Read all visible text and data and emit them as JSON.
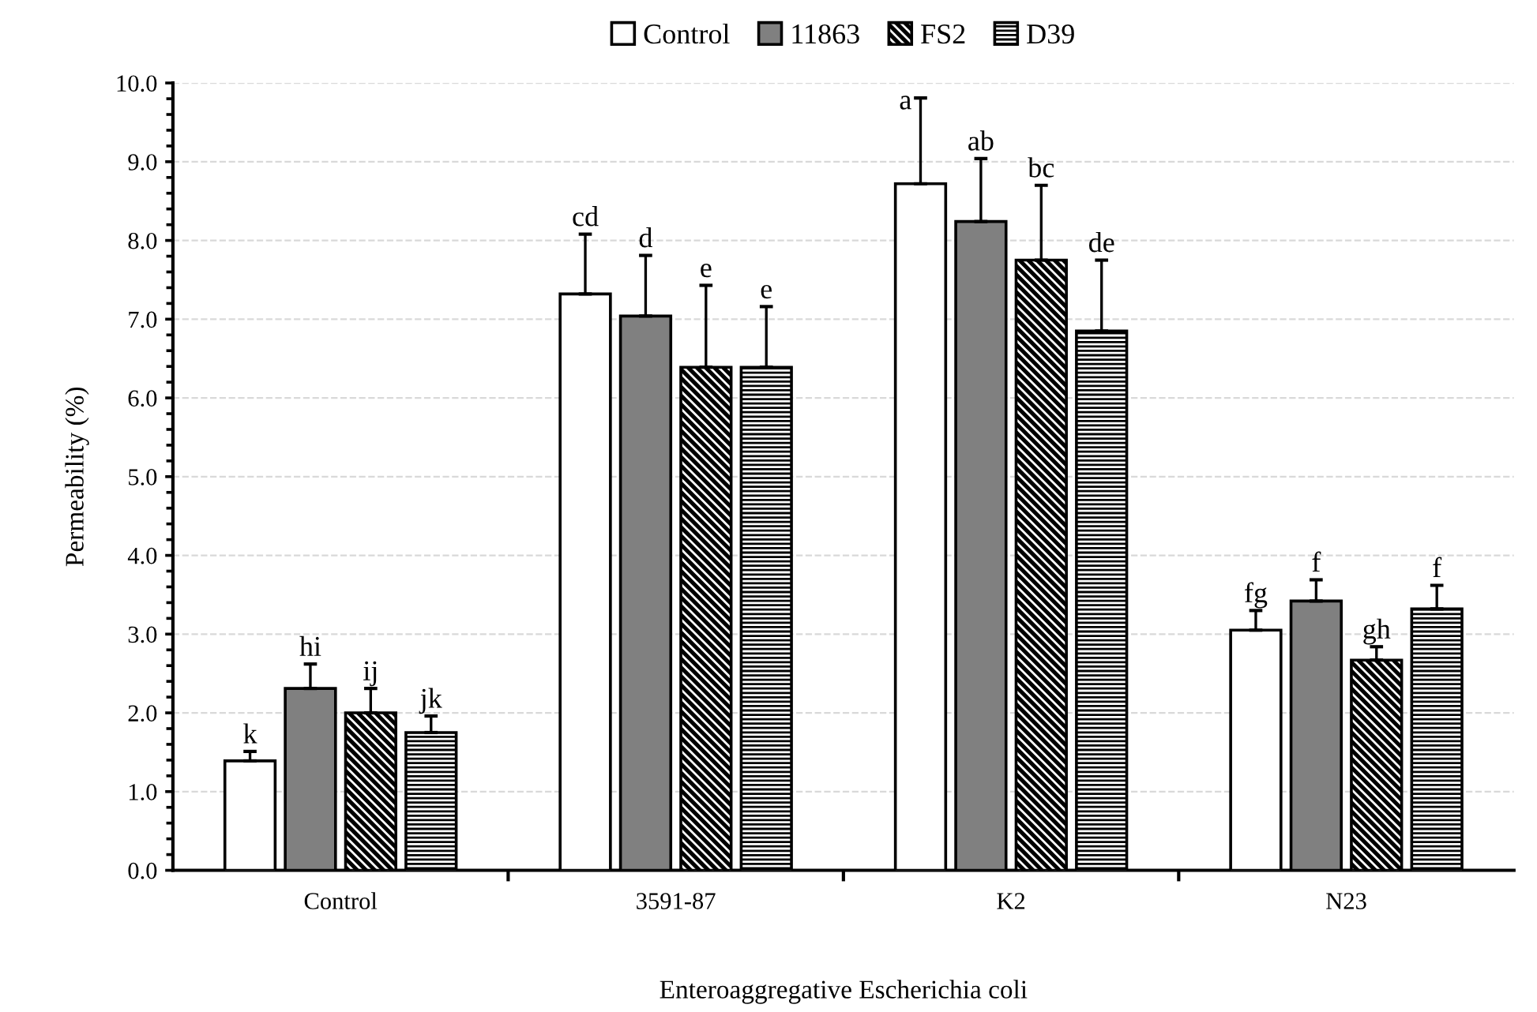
{
  "chart_data": {
    "type": "bar",
    "xlabel": "Enteroaggregative Escherichia coli",
    "ylabel": "Permeability (%)",
    "categories": [
      "Control",
      "3591-87",
      "K2",
      "N23"
    ],
    "series": [
      {
        "name": "Control",
        "color": "#ffffff",
        "values": [
          1.39,
          7.32,
          8.72,
          3.05
        ],
        "errors": [
          0.12,
          0.76,
          1.09,
          0.25
        ],
        "value_labels": [
          "k",
          "cd",
          "a",
          "fg"
        ]
      },
      {
        "name": "11863",
        "color": "#808080",
        "values": [
          2.31,
          7.04,
          8.24,
          3.42
        ],
        "errors": [
          0.31,
          0.77,
          0.8,
          0.27
        ],
        "value_labels": [
          "hi",
          "d",
          "ab",
          "f"
        ]
      },
      {
        "name": "FS2",
        "color": "#000000",
        "values": [
          2.0,
          6.39,
          7.75,
          2.67
        ],
        "errors": [
          0.31,
          1.04,
          0.95,
          0.17
        ],
        "value_labels": [
          "ij",
          "e",
          "bc",
          "gh"
        ]
      },
      {
        "name": "D39",
        "color": "#000000",
        "values": [
          1.75,
          6.39,
          6.85,
          3.32
        ],
        "errors": [
          0.21,
          0.77,
          0.9,
          0.3
        ],
        "value_labels": [
          "jk",
          "e",
          "de",
          "f"
        ]
      }
    ],
    "ylim": [
      0,
      10
    ],
    "yticks": [
      {
        "value": 0,
        "label": "0.0"
      },
      {
        "value": 1,
        "label": "1.0"
      },
      {
        "value": 2,
        "label": "2.0"
      },
      {
        "value": 3,
        "label": "3.0"
      },
      {
        "value": 4,
        "label": "4.0"
      },
      {
        "value": 5,
        "label": "5.0"
      },
      {
        "value": 6,
        "label": "6.0"
      },
      {
        "value": 7,
        "label": "7.0"
      },
      {
        "value": 8,
        "label": "8.0"
      },
      {
        "value": 9,
        "label": "9.0"
      },
      {
        "value": 10,
        "label": "10.0"
      }
    ],
    "grid": "y",
    "legend": "top"
  }
}
